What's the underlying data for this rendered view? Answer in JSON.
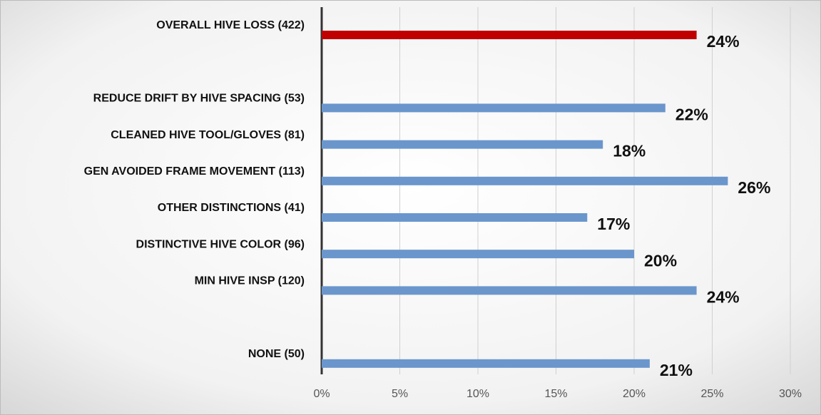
{
  "chart_data": {
    "type": "hbar",
    "categories": [
      "OVERALL HIVE LOSS (422)",
      null,
      "REDUCE DRIFT BY HIVE SPACING (53)",
      "CLEANED HIVE TOOL/GLOVES (81)",
      "GEN AVOIDED FRAME MOVEMENT (113)",
      "OTHER DISTINCTIONS (41)",
      "DISTINCTIVE HIVE COLOR (96)",
      "MIN HIVE INSP (120)",
      null,
      "NONE (50)"
    ],
    "values": [
      24,
      null,
      22,
      18,
      26,
      17,
      20,
      24,
      null,
      21
    ],
    "value_labels": [
      "24%",
      null,
      "22%",
      "18%",
      "26%",
      "17%",
      "20%",
      "24%",
      null,
      "21%"
    ],
    "colors": [
      "#c00000",
      null,
      "#6a96cc",
      "#6a96cc",
      "#6a96cc",
      "#6a96cc",
      "#6a96cc",
      "#6a96cc",
      null,
      "#6a96cc"
    ],
    "xlim": [
      0,
      30
    ],
    "xticks": [
      {
        "value": 0,
        "label": "0%"
      },
      {
        "value": 5,
        "label": "5%"
      },
      {
        "value": 10,
        "label": "10%"
      },
      {
        "value": 15,
        "label": "15%"
      },
      {
        "value": 20,
        "label": "20%"
      },
      {
        "value": 25,
        "label": "25%"
      },
      {
        "value": 30,
        "label": "30%"
      }
    ],
    "grid": true
  }
}
